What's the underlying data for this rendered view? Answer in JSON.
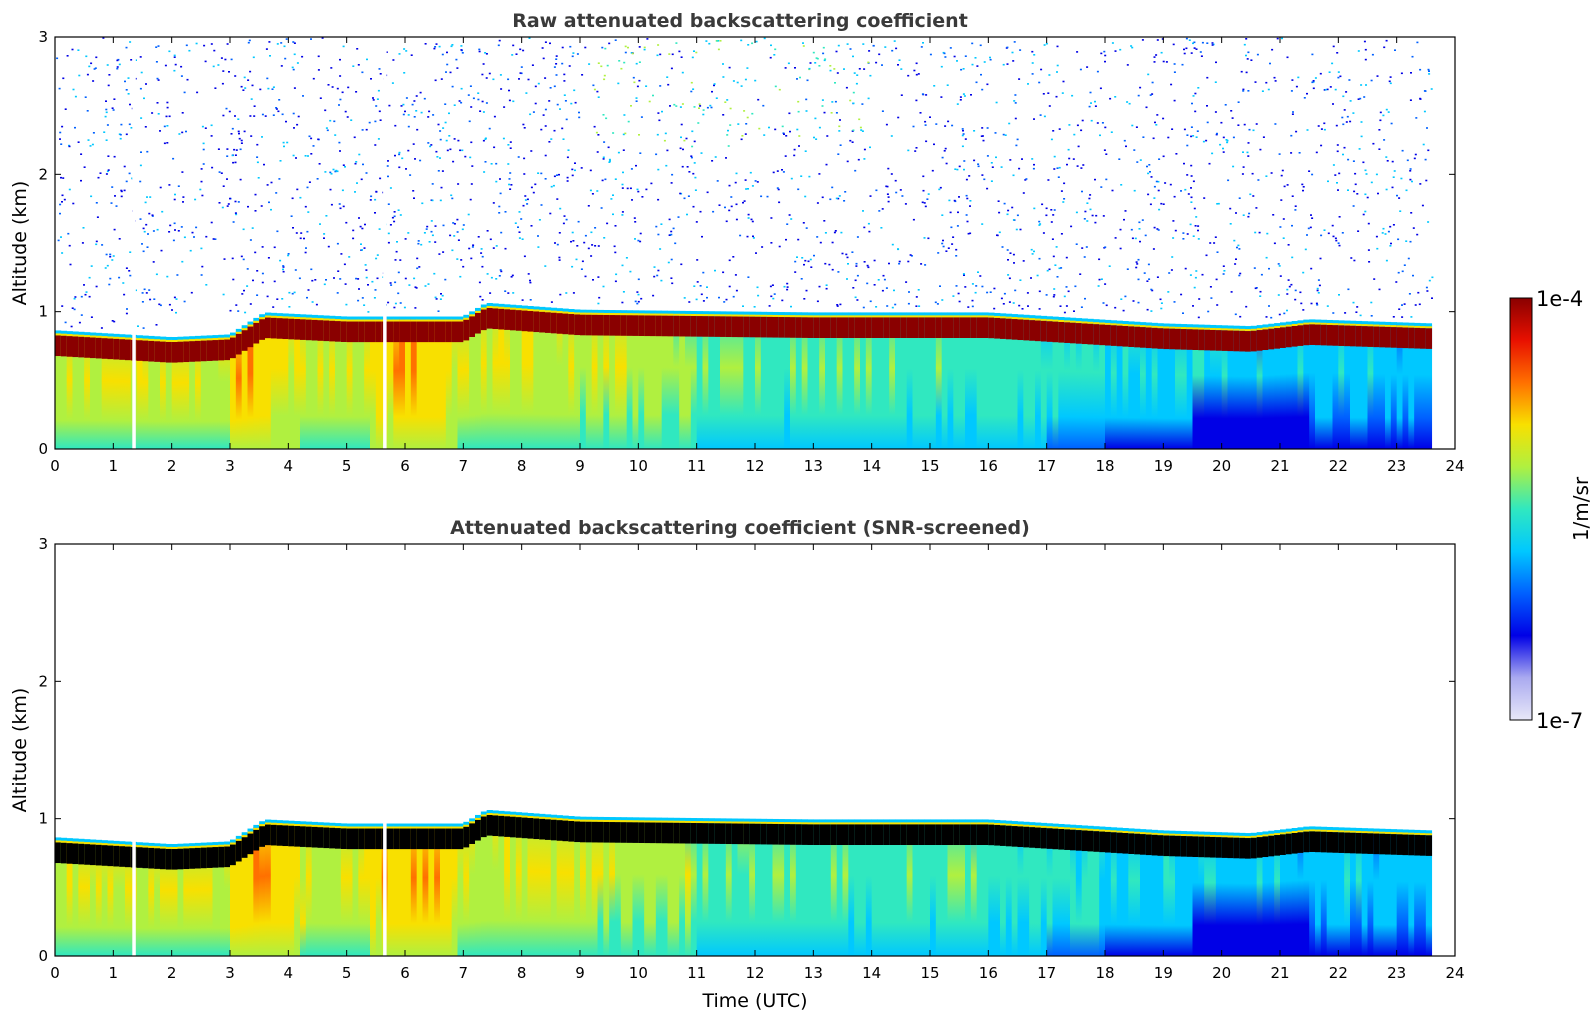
{
  "chart_data": [
    {
      "type": "heatmap",
      "title": "Raw attenuated backscattering coefficient",
      "xlabel": "",
      "ylabel": "Altitude (km)",
      "xlim": [
        0,
        24
      ],
      "ylim": [
        0,
        3
      ],
      "x_ticks": [
        "0",
        "1",
        "2",
        "3",
        "4",
        "5",
        "6",
        "7",
        "8",
        "9",
        "10",
        "11",
        "12",
        "13",
        "14",
        "15",
        "16",
        "17",
        "18",
        "19",
        "20",
        "21",
        "22",
        "23",
        "24"
      ],
      "y_ticks": [
        "0",
        "1",
        "2",
        "3"
      ],
      "data_end_hour": 23.6,
      "layer_top_km": {
        "hours": [
          0,
          2,
          3,
          3.6,
          5,
          7,
          7.4,
          9,
          13,
          16,
          19,
          20.5,
          21.5,
          23.6
        ],
        "values": [
          0.85,
          0.8,
          0.82,
          0.98,
          0.95,
          0.95,
          1.05,
          1.0,
          0.98,
          0.98,
          0.9,
          0.88,
          0.93,
          0.9
        ]
      },
      "noise_above_layer": true,
      "gaps_hours": [
        1.35,
        5.65
      ]
    },
    {
      "type": "heatmap",
      "title": "Attenuated backscattering coefficient (SNR-screened)",
      "xlabel": "Time (UTC)",
      "ylabel": "Altitude (km)",
      "xlim": [
        0,
        24
      ],
      "ylim": [
        0,
        3
      ],
      "x_ticks": [
        "0",
        "1",
        "2",
        "3",
        "4",
        "5",
        "6",
        "7",
        "8",
        "9",
        "10",
        "11",
        "12",
        "13",
        "14",
        "15",
        "16",
        "17",
        "18",
        "19",
        "20",
        "21",
        "22",
        "23",
        "24"
      ],
      "y_ticks": [
        "0",
        "1",
        "2",
        "3"
      ],
      "data_end_hour": 23.6,
      "layer_top_km": {
        "hours": [
          0,
          2,
          3,
          3.6,
          5,
          7,
          7.4,
          9,
          13,
          16,
          19,
          20.5,
          21.5,
          23.6
        ],
        "values": [
          0.85,
          0.8,
          0.82,
          0.98,
          0.95,
          0.95,
          1.05,
          1.0,
          0.98,
          0.98,
          0.9,
          0.88,
          0.93,
          0.9
        ]
      },
      "noise_above_layer": false,
      "saturated_color": "#000000",
      "gaps_hours": [
        1.35,
        5.65
      ]
    }
  ],
  "colorbar": {
    "label": "1/m/sr",
    "max_label": "1e-4",
    "min_label": "1e-7",
    "colors": [
      "#e8e8f8",
      "#aaaaf0",
      "#0000e6",
      "#0060ff",
      "#00c8ff",
      "#30e8c0",
      "#b0f040",
      "#f8e000",
      "#ff7000",
      "#e81000",
      "#8a0000"
    ]
  }
}
